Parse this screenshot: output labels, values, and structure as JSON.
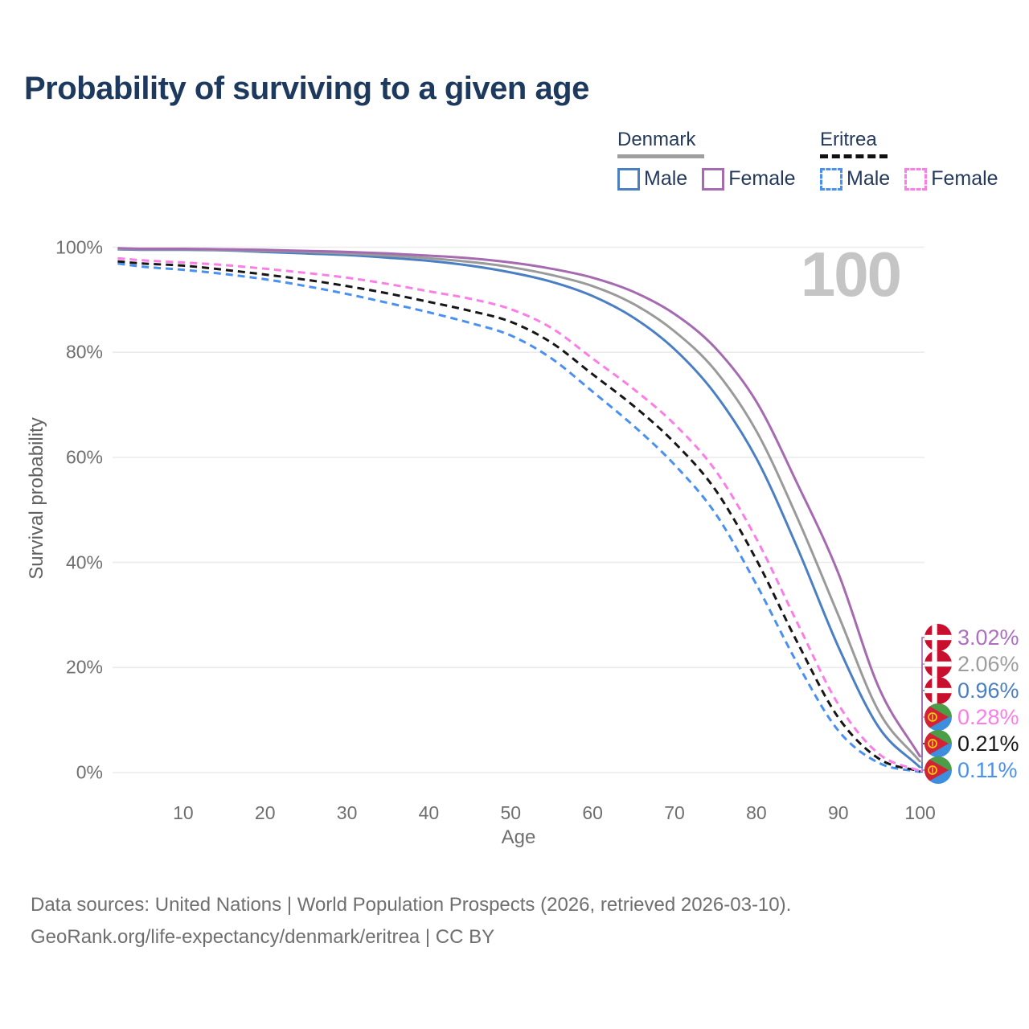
{
  "title": "Probability of surviving to a given age",
  "watermark": "100",
  "legend": {
    "groups": [
      {
        "name": "Denmark",
        "line_style": "solid",
        "underline_color": "#9e9e9e",
        "items": [
          {
            "label": "Male",
            "color": "#4b7fc3"
          },
          {
            "label": "Female",
            "color": "#a56ab0"
          }
        ]
      },
      {
        "name": "Eritrea",
        "line_style": "dashed",
        "underline_color": "#111111",
        "items": [
          {
            "label": "Male",
            "color": "#4a90f0"
          },
          {
            "label": "Female",
            "color": "#fb7ee6"
          }
        ]
      }
    ]
  },
  "y_axis": {
    "label": "Survival probability",
    "ticks": [
      {
        "label": "0%",
        "value": 0
      },
      {
        "label": "20%",
        "value": 20
      },
      {
        "label": "40%",
        "value": 40
      },
      {
        "label": "60%",
        "value": 60
      },
      {
        "label": "80%",
        "value": 80
      },
      {
        "label": "100%",
        "value": 100
      }
    ]
  },
  "x_axis": {
    "label": "Age",
    "ticks": [
      10,
      20,
      30,
      40,
      50,
      60,
      70,
      80,
      90,
      100
    ]
  },
  "chart_data": {
    "type": "line",
    "title": "Probability of surviving to a given age",
    "xlabel": "Age",
    "ylabel": "Survival probability",
    "xlim": [
      0,
      100
    ],
    "ylim": [
      0,
      100
    ],
    "grid": "horizontal",
    "x": [
      0,
      5,
      10,
      15,
      20,
      25,
      30,
      35,
      40,
      45,
      50,
      55,
      60,
      65,
      70,
      75,
      80,
      85,
      90,
      95,
      100
    ],
    "series": [
      {
        "name": "Eritrea Male",
        "country": "Eritrea",
        "sex": "Male",
        "flag": "eritrea",
        "color": "#4a90f0",
        "dash": "dashed",
        "end_label": "0.11%",
        "label_color": "#4a90f0",
        "values": [
          96.9,
          96.3,
          95.7,
          94.9,
          93.9,
          92.6,
          91.1,
          89.4,
          87.6,
          85.6,
          83.2,
          78.8,
          72.5,
          66.0,
          58.6,
          49.3,
          35.8,
          20.8,
          8.0,
          1.8,
          0.11
        ]
      },
      {
        "name": "Eritrea Both sexes",
        "country": "Eritrea",
        "sex": "Both sexes",
        "flag": "eritrea",
        "color": "#161616",
        "dash": "dashed",
        "end_label": "0.21%",
        "label_color": "#1a1a1a",
        "values": [
          97.3,
          96.9,
          96.5,
          95.7,
          94.8,
          93.8,
          92.6,
          91.2,
          89.6,
          87.9,
          85.8,
          81.8,
          75.8,
          69.8,
          62.8,
          53.8,
          40.5,
          24.8,
          10.5,
          2.6,
          0.21
        ]
      },
      {
        "name": "Eritrea Female",
        "country": "Eritrea",
        "sex": "Female",
        "flag": "eritrea",
        "color": "#fb7ee6",
        "dash": "dashed",
        "end_label": "0.28%",
        "label_color": "#fb7ee6",
        "values": [
          97.9,
          97.5,
          97.1,
          96.6,
          95.9,
          95.1,
          94.2,
          93.0,
          91.6,
          90.2,
          88.2,
          84.6,
          78.8,
          73.0,
          66.3,
          57.5,
          44.5,
          28.5,
          13.0,
          3.5,
          0.28
        ]
      },
      {
        "name": "Denmark Male",
        "country": "Denmark",
        "sex": "Male",
        "flag": "denmark",
        "color": "#4b7fc3",
        "dash": "solid",
        "end_label": "0.96%",
        "label_color": "#4a7fc1",
        "values": [
          99.6,
          99.5,
          99.5,
          99.4,
          99.1,
          98.8,
          98.5,
          98.0,
          97.4,
          96.5,
          95.2,
          93.4,
          90.7,
          86.6,
          80.6,
          72.0,
          59.8,
          42.8,
          24.0,
          8.5,
          0.96
        ]
      },
      {
        "name": "Denmark Both sexes",
        "country": "Denmark",
        "sex": "Both sexes",
        "flag": "denmark",
        "color": "#9a9a9a",
        "dash": "solid",
        "end_label": "2.06%",
        "label_color": "#9e9e9e",
        "values": [
          99.7,
          99.6,
          99.6,
          99.5,
          99.3,
          99.1,
          98.8,
          98.4,
          97.9,
          97.2,
          96.2,
          94.7,
          92.6,
          89.2,
          84.0,
          76.5,
          65.0,
          48.5,
          30.0,
          11.5,
          2.06
        ]
      },
      {
        "name": "Denmark Female",
        "country": "Denmark",
        "sex": "Female",
        "flag": "denmark",
        "color": "#a56ab0",
        "dash": "solid",
        "end_label": "3.02%",
        "label_color": "#ad6fbe",
        "values": [
          99.8,
          99.7,
          99.7,
          99.6,
          99.5,
          99.3,
          99.1,
          98.8,
          98.4,
          97.9,
          97.1,
          95.9,
          94.2,
          91.5,
          87.3,
          80.8,
          70.6,
          55.0,
          38.0,
          16.0,
          3.02
        ]
      }
    ]
  },
  "flag_colors": {
    "denmark": {
      "red": "#c8102e",
      "white": "#ffffff"
    },
    "eritrea": {
      "green": "#4b9e47",
      "blue": "#3d8fde",
      "red": "#d32235",
      "yellow": "#f5c518"
    }
  },
  "footer": {
    "line1": "Data sources: United Nations | World Population Prospects (2026, retrieved 2026-03-10).",
    "line2": "GeoRank.org/life-expectancy/denmark/eritrea | CC BY"
  }
}
